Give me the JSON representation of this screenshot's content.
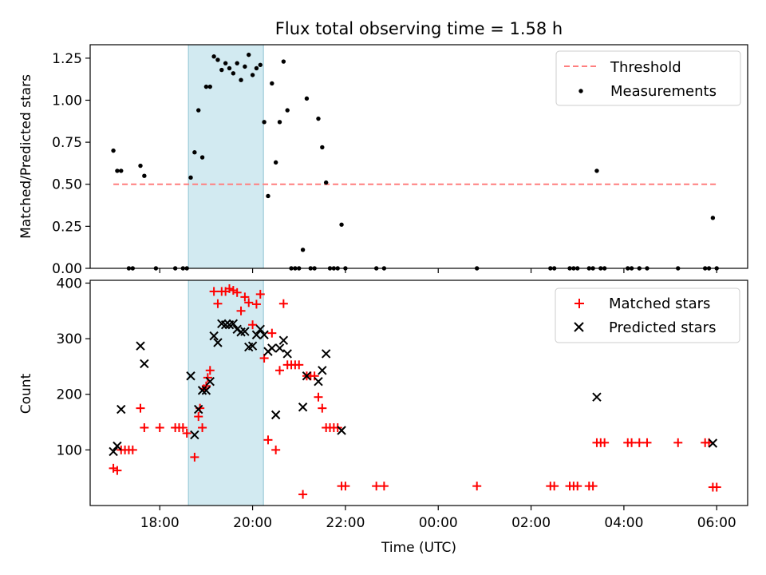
{
  "chart_data": [
    {
      "type": "scatter",
      "title": "Flux total observing time = 1.58 h",
      "xlabel": "",
      "ylabel": "Matched/Predicted stars",
      "xlim": [
        "16:30",
        "06:40"
      ],
      "ylim": [
        0,
        1.33
      ],
      "yticks": [
        0.0,
        0.25,
        0.5,
        0.75,
        1.0,
        1.25
      ],
      "ytick_labels": [
        "0.00",
        "0.25",
        "0.50",
        "0.75",
        "1.00",
        "1.25"
      ],
      "shaded_interval": {
        "x": [
          "18:37",
          "20:14"
        ],
        "color": "#add8e6"
      },
      "legend_position": "upper right",
      "series": [
        {
          "name": "Threshold",
          "kind": "dashed-line",
          "color": "#ff7f7f",
          "x": [
            "17:00",
            "06:00"
          ],
          "y": [
            0.5,
            0.5
          ]
        },
        {
          "name": "Measurements",
          "kind": "points",
          "color": "#000000",
          "points": [
            [
              "17:00",
              0.7
            ],
            [
              "17:05",
              0.58
            ],
            [
              "17:10",
              0.58
            ],
            [
              "17:20",
              0.0
            ],
            [
              "17:25",
              0.0
            ],
            [
              "17:35",
              0.61
            ],
            [
              "17:40",
              0.55
            ],
            [
              "17:55",
              0.0
            ],
            [
              "18:20",
              0.0
            ],
            [
              "18:30",
              0.0
            ],
            [
              "18:35",
              0.0
            ],
            [
              "18:40",
              0.54
            ],
            [
              "18:45",
              0.69
            ],
            [
              "18:50",
              0.94
            ],
            [
              "18:55",
              0.66
            ],
            [
              "19:00",
              1.08
            ],
            [
              "19:05",
              1.08
            ],
            [
              "19:10",
              1.26
            ],
            [
              "19:15",
              1.24
            ],
            [
              "19:20",
              1.18
            ],
            [
              "19:25",
              1.22
            ],
            [
              "19:30",
              1.19
            ],
            [
              "19:35",
              1.16
            ],
            [
              "19:40",
              1.22
            ],
            [
              "19:45",
              1.12
            ],
            [
              "19:50",
              1.2
            ],
            [
              "19:55",
              1.27
            ],
            [
              "20:00",
              1.15
            ],
            [
              "20:05",
              1.19
            ],
            [
              "20:10",
              1.21
            ],
            [
              "20:15",
              0.87
            ],
            [
              "20:20",
              0.43
            ],
            [
              "20:25",
              1.1
            ],
            [
              "20:30",
              0.63
            ],
            [
              "20:35",
              0.87
            ],
            [
              "20:40",
              1.23
            ],
            [
              "20:45",
              0.94
            ],
            [
              "20:50",
              0.0
            ],
            [
              "20:55",
              0.0
            ],
            [
              "21:00",
              0.0
            ],
            [
              "21:05",
              0.11
            ],
            [
              "21:10",
              1.01
            ],
            [
              "21:15",
              0.0
            ],
            [
              "21:20",
              0.0
            ],
            [
              "21:25",
              0.89
            ],
            [
              "21:30",
              0.72
            ],
            [
              "21:35",
              0.51
            ],
            [
              "21:40",
              0.0
            ],
            [
              "21:45",
              0.0
            ],
            [
              "21:50",
              0.0
            ],
            [
              "21:55",
              0.26
            ],
            [
              "22:00",
              0.0
            ],
            [
              "22:40",
              0.0
            ],
            [
              "22:50",
              0.0
            ],
            [
              "00:50",
              0.0
            ],
            [
              "02:25",
              0.0
            ],
            [
              "02:30",
              0.0
            ],
            [
              "02:50",
              0.0
            ],
            [
              "02:55",
              0.0
            ],
            [
              "03:00",
              0.0
            ],
            [
              "03:15",
              0.0
            ],
            [
              "03:20",
              0.0
            ],
            [
              "03:25",
              0.58
            ],
            [
              "03:30",
              0.0
            ],
            [
              "03:35",
              0.0
            ],
            [
              "04:05",
              0.0
            ],
            [
              "04:10",
              0.0
            ],
            [
              "04:20",
              0.0
            ],
            [
              "04:30",
              0.0
            ],
            [
              "05:10",
              0.0
            ],
            [
              "05:45",
              0.0
            ],
            [
              "05:50",
              0.0
            ],
            [
              "05:55",
              0.3
            ],
            [
              "06:00",
              0.0
            ]
          ]
        }
      ]
    },
    {
      "type": "scatter",
      "title": "",
      "xlabel": "Time (UTC)",
      "ylabel": "Count",
      "xlim": [
        "16:30",
        "06:40"
      ],
      "ylim": [
        0,
        405
      ],
      "yticks": [
        100,
        200,
        300,
        400
      ],
      "ytick_labels": [
        "100",
        "200",
        "300",
        "400"
      ],
      "xticks": [
        "18:00",
        "20:00",
        "22:00",
        "00:00",
        "02:00",
        "04:00",
        "06:00"
      ],
      "xtick_labels": [
        "18:00",
        "20:00",
        "22:00",
        "00:00",
        "02:00",
        "04:00",
        "06:00"
      ],
      "shaded_interval": {
        "x": [
          "18:37",
          "20:14"
        ],
        "color": "#add8e6"
      },
      "legend_position": "upper right",
      "series": [
        {
          "name": "Matched stars",
          "marker": "plus",
          "color": "#ff0000",
          "points": [
            [
              "17:00",
              67
            ],
            [
              "17:05",
              63
            ],
            [
              "17:10",
              100
            ],
            [
              "17:15",
              100
            ],
            [
              "17:20",
              100
            ],
            [
              "17:25",
              100
            ],
            [
              "17:35",
              175
            ],
            [
              "17:40",
              140
            ],
            [
              "18:00",
              140
            ],
            [
              "18:20",
              140
            ],
            [
              "18:25",
              140
            ],
            [
              "18:30",
              140
            ],
            [
              "18:35",
              130
            ],
            [
              "18:45",
              87
            ],
            [
              "18:50",
              160
            ],
            [
              "18:52",
              175
            ],
            [
              "18:55",
              140
            ],
            [
              "18:57",
              210
            ],
            [
              "19:00",
              215
            ],
            [
              "19:02",
              230
            ],
            [
              "19:05",
              243
            ],
            [
              "19:10",
              385
            ],
            [
              "19:15",
              363
            ],
            [
              "19:20",
              385
            ],
            [
              "19:25",
              385
            ],
            [
              "19:30",
              390
            ],
            [
              "19:35",
              387
            ],
            [
              "19:40",
              383
            ],
            [
              "19:45",
              350
            ],
            [
              "19:50",
              375
            ],
            [
              "19:55",
              365
            ],
            [
              "20:00",
              325
            ],
            [
              "20:05",
              362
            ],
            [
              "20:10",
              380
            ],
            [
              "20:15",
              265
            ],
            [
              "20:20",
              118
            ],
            [
              "20:25",
              310
            ],
            [
              "20:30",
              100
            ],
            [
              "20:35",
              243
            ],
            [
              "20:40",
              363
            ],
            [
              "20:45",
              253
            ],
            [
              "20:50",
              253
            ],
            [
              "20:55",
              253
            ],
            [
              "21:00",
              253
            ],
            [
              "21:05",
              20
            ],
            [
              "21:10",
              233
            ],
            [
              "21:15",
              233
            ],
            [
              "21:20",
              233
            ],
            [
              "21:25",
              195
            ],
            [
              "21:30",
              175
            ],
            [
              "21:35",
              140
            ],
            [
              "21:40",
              140
            ],
            [
              "21:45",
              140
            ],
            [
              "21:50",
              140
            ],
            [
              "21:55",
              35
            ],
            [
              "22:00",
              35
            ],
            [
              "22:40",
              35
            ],
            [
              "22:50",
              35
            ],
            [
              "00:50",
              35
            ],
            [
              "02:25",
              35
            ],
            [
              "02:30",
              35
            ],
            [
              "02:50",
              35
            ],
            [
              "02:55",
              35
            ],
            [
              "03:00",
              35
            ],
            [
              "03:15",
              35
            ],
            [
              "03:20",
              35
            ],
            [
              "03:25",
              113
            ],
            [
              "03:30",
              113
            ],
            [
              "03:35",
              113
            ],
            [
              "04:05",
              113
            ],
            [
              "04:10",
              113
            ],
            [
              "04:20",
              113
            ],
            [
              "04:30",
              113
            ],
            [
              "05:10",
              113
            ],
            [
              "05:45",
              113
            ],
            [
              "05:50",
              113
            ],
            [
              "05:55",
              33
            ],
            [
              "06:00",
              33
            ]
          ]
        },
        {
          "name": "Predicted stars",
          "marker": "x",
          "color": "#000000",
          "points": [
            [
              "17:00",
              97
            ],
            [
              "17:05",
              107
            ],
            [
              "17:10",
              173
            ],
            [
              "17:35",
              287
            ],
            [
              "17:40",
              255
            ],
            [
              "18:40",
              233
            ],
            [
              "18:45",
              127
            ],
            [
              "18:50",
              173
            ],
            [
              "18:55",
              207
            ],
            [
              "19:00",
              207
            ],
            [
              "19:05",
              223
            ],
            [
              "19:10",
              305
            ],
            [
              "19:15",
              293
            ],
            [
              "19:20",
              327
            ],
            [
              "19:25",
              325
            ],
            [
              "19:30",
              325
            ],
            [
              "19:35",
              327
            ],
            [
              "19:40",
              317
            ],
            [
              "19:45",
              312
            ],
            [
              "19:50",
              313
            ],
            [
              "19:55",
              285
            ],
            [
              "20:00",
              287
            ],
            [
              "20:05",
              307
            ],
            [
              "20:10",
              317
            ],
            [
              "20:15",
              307
            ],
            [
              "20:20",
              277
            ],
            [
              "20:25",
              283
            ],
            [
              "20:30",
              163
            ],
            [
              "20:35",
              283
            ],
            [
              "20:40",
              297
            ],
            [
              "20:45",
              273
            ],
            [
              "21:05",
              177
            ],
            [
              "21:10",
              233
            ],
            [
              "21:25",
              223
            ],
            [
              "21:30",
              243
            ],
            [
              "21:35",
              273
            ],
            [
              "21:55",
              135
            ],
            [
              "03:25",
              195
            ],
            [
              "05:55",
              112
            ]
          ]
        }
      ]
    }
  ]
}
